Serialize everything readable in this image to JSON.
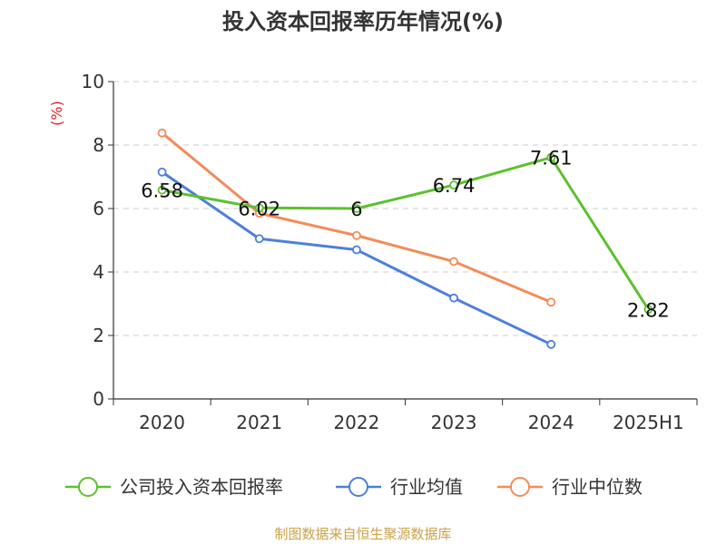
{
  "chart_data": {
    "type": "line",
    "title": "投入资本回报率历年情况(%)",
    "ylabel": "(%)",
    "xlabel": "",
    "categories": [
      "2020",
      "2021",
      "2022",
      "2023",
      "2024",
      "2025H1"
    ],
    "ylim": [
      0,
      10
    ],
    "yticks": [
      0,
      2,
      4,
      6,
      8,
      10
    ],
    "grid": "horizontal-dashed",
    "legend_position": "bottom",
    "series": [
      {
        "name": "公司投入资本回报率",
        "color": "#5cc12e",
        "values": [
          6.58,
          6.02,
          6.0,
          6.74,
          7.61,
          2.82
        ],
        "labels": [
          "6.58",
          "6.02",
          "6",
          "6.74",
          "7.61",
          "2.82"
        ]
      },
      {
        "name": "行业均值",
        "color": "#4d7fdb",
        "values": [
          7.15,
          5.05,
          4.7,
          3.18,
          1.72,
          null
        ]
      },
      {
        "name": "行业中位数",
        "color": "#f28c5a",
        "values": [
          8.38,
          5.85,
          5.15,
          4.33,
          3.05,
          null
        ]
      }
    ]
  },
  "colors": {
    "axis": "#333333",
    "grid": "#cccccc",
    "ylabel": "#dd2222",
    "source": "#c9a24a"
  },
  "source_text": "制图数据来自恒生聚源数据库"
}
